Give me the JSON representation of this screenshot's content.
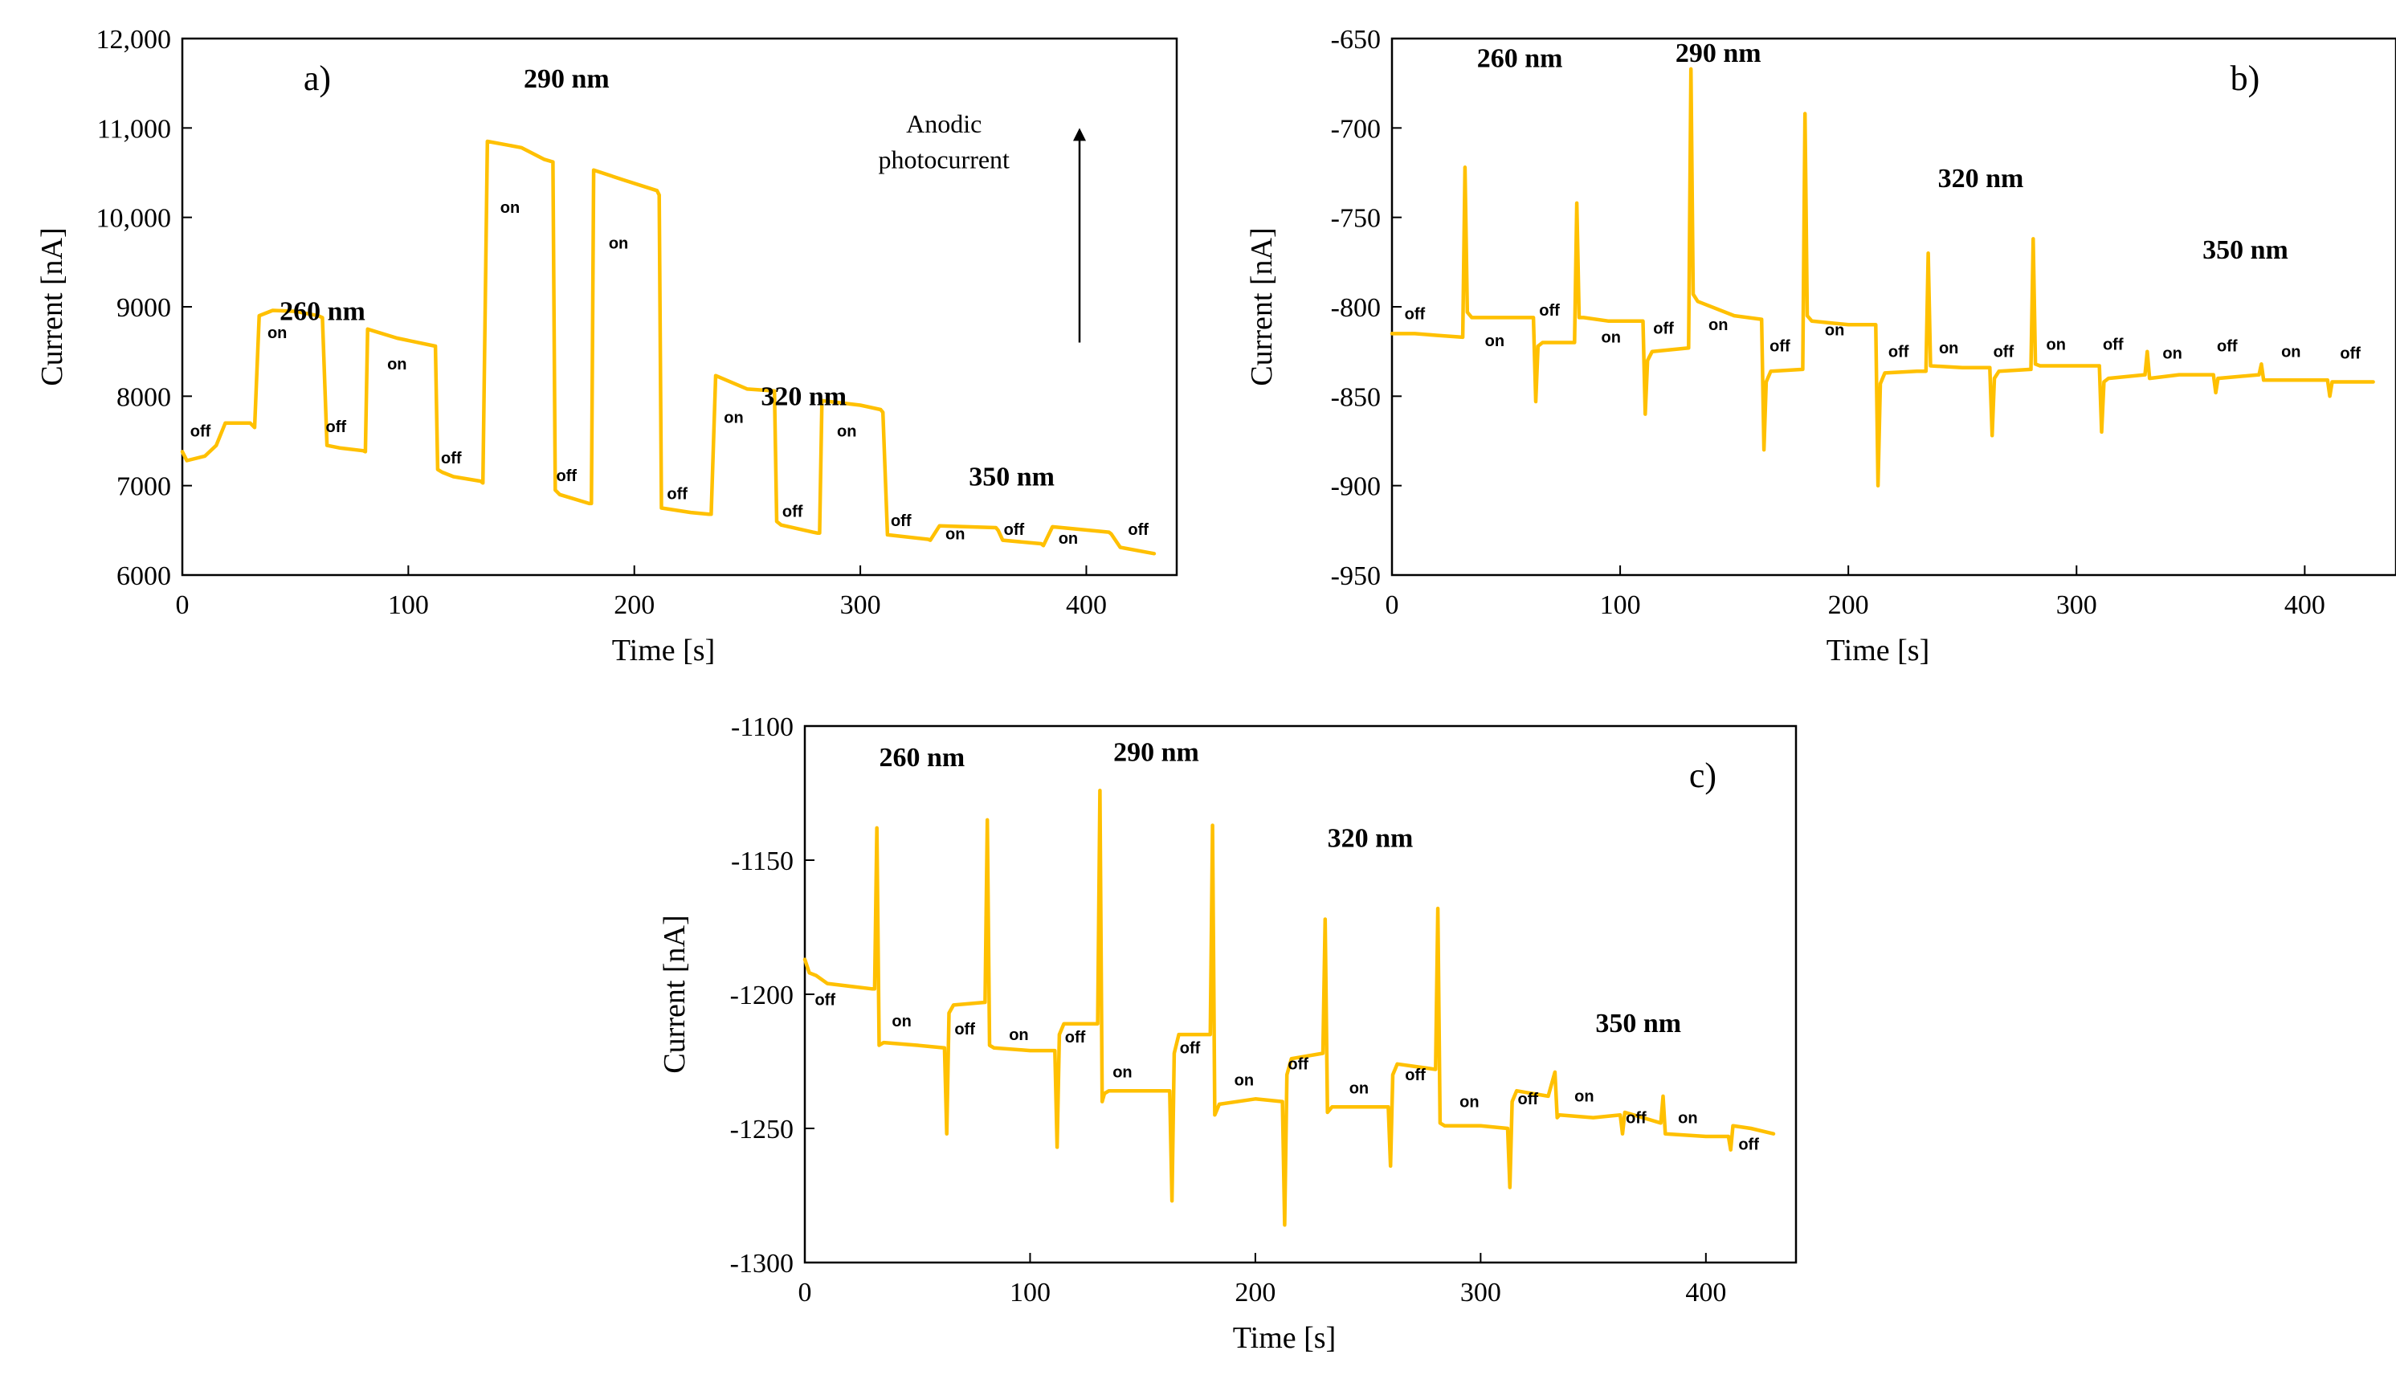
{
  "figure": {
    "trace_color": "#FFC000",
    "frame_color": "#000000"
  },
  "chart_data": [
    {
      "type": "line",
      "panel": "a)",
      "xlabel": "Time [s]",
      "ylabel": "Current [nA]",
      "xlim": [
        0,
        440
      ],
      "ylim": [
        6000,
        12000
      ],
      "xticks": [
        0,
        100,
        200,
        300,
        400
      ],
      "yticks": [
        6000,
        7000,
        8000,
        9000,
        10000,
        11000,
        12000
      ],
      "ytick_labels": [
        "6000",
        "7000",
        "8000",
        "9000",
        "10,000",
        "11,000",
        "12,000"
      ],
      "wavelength_labels": [
        {
          "text": "260 nm",
          "x": 62,
          "y": 8850
        },
        {
          "text": "290 nm",
          "x": 170,
          "y": 11450
        },
        {
          "text": "320 nm",
          "x": 275,
          "y": 7900
        },
        {
          "text": "350 nm",
          "x": 367,
          "y": 7000
        }
      ],
      "annotations": [
        {
          "text": "Anodic",
          "x": 337,
          "y": 10950
        },
        {
          "text": "photocurrent",
          "x": 337,
          "y": 10550
        }
      ],
      "arrow": {
        "x": 397,
        "y_from": 8600,
        "y_to": 11000
      },
      "state_labels": [
        {
          "text": "off",
          "x": 8,
          "y": 7550
        },
        {
          "text": "on",
          "x": 42,
          "y": 8650
        },
        {
          "text": "off",
          "x": 68,
          "y": 7600
        },
        {
          "text": "on",
          "x": 95,
          "y": 8300
        },
        {
          "text": "off",
          "x": 119,
          "y": 7250
        },
        {
          "text": "on",
          "x": 145,
          "y": 10050
        },
        {
          "text": "off",
          "x": 170,
          "y": 7050
        },
        {
          "text": "on",
          "x": 193,
          "y": 9650
        },
        {
          "text": "off",
          "x": 219,
          "y": 6850
        },
        {
          "text": "on",
          "x": 244,
          "y": 7700
        },
        {
          "text": "off",
          "x": 270,
          "y": 6650
        },
        {
          "text": "on",
          "x": 294,
          "y": 7550
        },
        {
          "text": "off",
          "x": 318,
          "y": 6550
        },
        {
          "text": "on",
          "x": 342,
          "y": 6400
        },
        {
          "text": "off",
          "x": 368,
          "y": 6450
        },
        {
          "text": "on",
          "x": 392,
          "y": 6350
        },
        {
          "text": "off",
          "x": 423,
          "y": 6450
        }
      ],
      "series": [
        {
          "name": "photocurrent",
          "x": [
            0,
            2,
            10,
            15,
            19,
            30,
            32,
            34,
            40,
            50,
            60,
            62,
            64,
            70,
            80,
            81,
            82,
            95,
            112,
            113,
            115,
            120,
            132,
            133,
            135,
            150,
            160,
            164,
            165,
            167,
            180,
            181,
            182,
            195,
            210,
            211,
            212,
            225,
            233,
            234,
            236,
            250,
            262,
            263,
            265,
            279,
            281,
            282,
            283,
            300,
            309,
            310,
            312,
            330,
            331,
            335,
            360,
            361,
            363,
            380,
            381,
            385,
            410,
            411,
            415,
            430
          ],
          "y": [
            7380,
            7280,
            7330,
            7450,
            7700,
            7700,
            7650,
            8900,
            8960,
            8950,
            8900,
            8880,
            7450,
            7420,
            7390,
            7380,
            8750,
            8650,
            8560,
            7180,
            7150,
            7100,
            7050,
            7030,
            10850,
            10780,
            10650,
            10620,
            6950,
            6900,
            6800,
            6800,
            10530,
            10420,
            10300,
            10250,
            6750,
            6700,
            6680,
            6680,
            8230,
            8080,
            8060,
            6600,
            6560,
            6480,
            6470,
            6470,
            7950,
            7900,
            7850,
            7820,
            6450,
            6400,
            6390,
            6550,
            6530,
            6500,
            6390,
            6350,
            6330,
            6540,
            6480,
            6460,
            6310,
            6240
          ]
        }
      ]
    },
    {
      "type": "line",
      "panel": "b)",
      "xlabel": "Time [s]",
      "ylabel": "Current [nA]",
      "xlim": [
        0,
        440
      ],
      "ylim": [
        -950,
        -650
      ],
      "xticks": [
        0,
        100,
        200,
        300,
        400
      ],
      "yticks": [
        -950,
        -900,
        -850,
        -800,
        -750,
        -700,
        -650
      ],
      "ytick_labels": [
        "-950",
        "-900",
        "-850",
        "-800",
        "-750",
        "-700",
        "-650"
      ],
      "wavelength_labels": [
        {
          "text": "260 nm",
          "x": 56,
          "y": -666
        },
        {
          "text": "290 nm",
          "x": 143,
          "y": -663
        },
        {
          "text": "320 nm",
          "x": 258,
          "y": -733
        },
        {
          "text": "350 nm",
          "x": 374,
          "y": -773
        }
      ],
      "state_labels": [
        {
          "text": "off",
          "x": 10,
          "y": -807
        },
        {
          "text": "on",
          "x": 45,
          "y": -822
        },
        {
          "text": "off",
          "x": 69,
          "y": -805
        },
        {
          "text": "on",
          "x": 96,
          "y": -820
        },
        {
          "text": "off",
          "x": 119,
          "y": -815
        },
        {
          "text": "on",
          "x": 143,
          "y": -813
        },
        {
          "text": "off",
          "x": 170,
          "y": -825
        },
        {
          "text": "on",
          "x": 194,
          "y": -816
        },
        {
          "text": "off",
          "x": 222,
          "y": -828
        },
        {
          "text": "on",
          "x": 244,
          "y": -826
        },
        {
          "text": "off",
          "x": 268,
          "y": -828
        },
        {
          "text": "on",
          "x": 291,
          "y": -824
        },
        {
          "text": "off",
          "x": 316,
          "y": -824
        },
        {
          "text": "on",
          "x": 342,
          "y": -829
        },
        {
          "text": "off",
          "x": 366,
          "y": -825
        },
        {
          "text": "on",
          "x": 394,
          "y": -828
        },
        {
          "text": "off",
          "x": 420,
          "y": -829
        }
      ],
      "series": [
        {
          "name": "photocurrent",
          "x": [
            0,
            10,
            20,
            31,
            32,
            33,
            35,
            50,
            62,
            63,
            64,
            66,
            80,
            81,
            82,
            84,
            95,
            110,
            111,
            112,
            114,
            130,
            131,
            132,
            134,
            150,
            162,
            163,
            164,
            166,
            180,
            181,
            182,
            184,
            200,
            212,
            213,
            214,
            216,
            230,
            234,
            235,
            236,
            250,
            262,
            263,
            264,
            266,
            280,
            281,
            282,
            284,
            300,
            310,
            311,
            312,
            314,
            330,
            331,
            332,
            345,
            360,
            361,
            362,
            380,
            381,
            382,
            400,
            410,
            411,
            412,
            430
          ],
          "y": [
            -815,
            -815,
            -816,
            -817,
            -722,
            -803,
            -806,
            -806,
            -806,
            -853,
            -822,
            -820,
            -820,
            -742,
            -806,
            -806,
            -808,
            -808,
            -860,
            -830,
            -825,
            -823,
            -667,
            -793,
            -797,
            -805,
            -807,
            -880,
            -842,
            -836,
            -835,
            -692,
            -805,
            -808,
            -810,
            -810,
            -900,
            -843,
            -837,
            -836,
            -836,
            -770,
            -833,
            -834,
            -834,
            -872,
            -840,
            -836,
            -835,
            -762,
            -832,
            -833,
            -833,
            -833,
            -870,
            -842,
            -840,
            -838,
            -825,
            -840,
            -838,
            -838,
            -848,
            -840,
            -838,
            -832,
            -841,
            -841,
            -841,
            -850,
            -842,
            -842
          ]
        }
      ]
    },
    {
      "type": "line",
      "panel": "c)",
      "xlabel": "Time [s]",
      "ylabel": "Current [nA]",
      "xlim": [
        0,
        440
      ],
      "ylim": [
        -1300,
        -1100
      ],
      "xticks": [
        0,
        100,
        200,
        300,
        400
      ],
      "yticks": [
        -1300,
        -1250,
        -1200,
        -1150,
        -1100
      ],
      "ytick_labels": [
        "-1300",
        "-1250",
        "-1200",
        "-1150",
        "-1100"
      ],
      "wavelength_labels": [
        {
          "text": "260 nm",
          "x": 52,
          "y": -1115
        },
        {
          "text": "290 nm",
          "x": 156,
          "y": -1113
        },
        {
          "text": "320 nm",
          "x": 251,
          "y": -1145
        },
        {
          "text": "350 nm",
          "x": 370,
          "y": -1214
        }
      ],
      "annotations": [],
      "state_labels": [
        {
          "text": "off",
          "x": 9,
          "y": -1204
        },
        {
          "text": "on",
          "x": 43,
          "y": -1212
        },
        {
          "text": "off",
          "x": 71,
          "y": -1215
        },
        {
          "text": "on",
          "x": 95,
          "y": -1217
        },
        {
          "text": "off",
          "x": 120,
          "y": -1218
        },
        {
          "text": "on",
          "x": 141,
          "y": -1231
        },
        {
          "text": "off",
          "x": 171,
          "y": -1222
        },
        {
          "text": "on",
          "x": 195,
          "y": -1234
        },
        {
          "text": "off",
          "x": 219,
          "y": -1228
        },
        {
          "text": "on",
          "x": 246,
          "y": -1237
        },
        {
          "text": "off",
          "x": 271,
          "y": -1232
        },
        {
          "text": "on",
          "x": 295,
          "y": -1242
        },
        {
          "text": "off",
          "x": 321,
          "y": -1241
        },
        {
          "text": "on",
          "x": 346,
          "y": -1240
        },
        {
          "text": "off",
          "x": 369,
          "y": -1248
        },
        {
          "text": "on",
          "x": 392,
          "y": -1248
        },
        {
          "text": "off",
          "x": 419,
          "y": -1258
        }
      ],
      "series": [
        {
          "name": "photocurrent",
          "x": [
            0,
            2,
            5,
            10,
            20,
            30,
            31,
            32,
            33,
            35,
            50,
            62,
            63,
            64,
            66,
            80,
            81,
            82,
            84,
            100,
            111,
            112,
            113,
            115,
            130,
            131,
            132,
            133,
            135,
            150,
            162,
            163,
            164,
            166,
            180,
            181,
            182,
            184,
            200,
            212,
            213,
            214,
            216,
            230,
            231,
            232,
            234,
            250,
            259,
            260,
            261,
            263,
            280,
            281,
            282,
            284,
            300,
            312,
            313,
            314,
            316,
            330,
            333,
            334,
            335,
            350,
            362,
            363,
            364,
            380,
            381,
            382,
            400,
            410,
            411,
            412,
            420,
            430
          ],
          "y": [
            -1187,
            -1192,
            -1193,
            -1196,
            -1197,
            -1198,
            -1198,
            -1138,
            -1219,
            -1218,
            -1219,
            -1220,
            -1252,
            -1207,
            -1204,
            -1203,
            -1135,
            -1219,
            -1220,
            -1221,
            -1221,
            -1257,
            -1215,
            -1211,
            -1211,
            -1124,
            -1240,
            -1237,
            -1236,
            -1236,
            -1236,
            -1277,
            -1222,
            -1215,
            -1215,
            -1137,
            -1245,
            -1241,
            -1239,
            -1240,
            -1286,
            -1230,
            -1224,
            -1222,
            -1172,
            -1244,
            -1242,
            -1242,
            -1242,
            -1264,
            -1230,
            -1226,
            -1228,
            -1168,
            -1248,
            -1249,
            -1249,
            -1250,
            -1272,
            -1240,
            -1236,
            -1238,
            -1229,
            -1246,
            -1245,
            -1246,
            -1245,
            -1252,
            -1244,
            -1248,
            -1238,
            -1252,
            -1253,
            -1253,
            -1258,
            -1249,
            -1250,
            -1252
          ]
        }
      ]
    }
  ]
}
